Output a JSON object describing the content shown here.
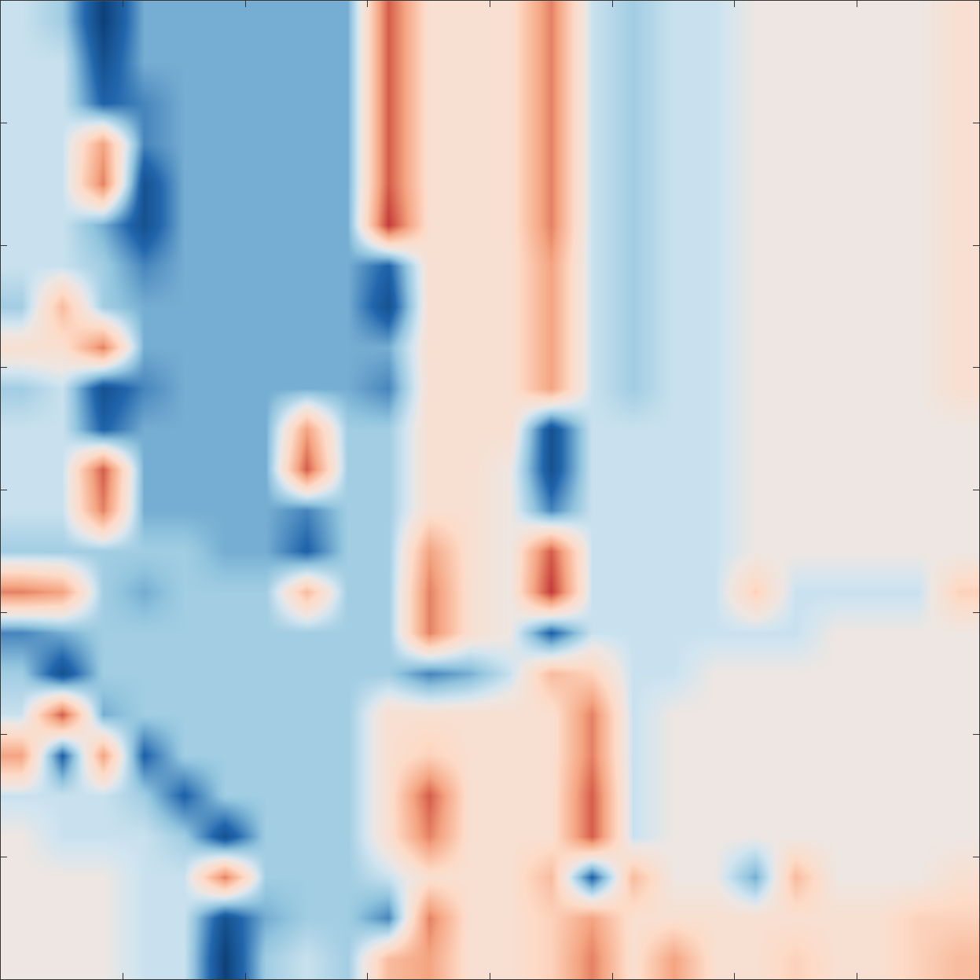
{
  "chart_data": {
    "type": "heatmap",
    "tick_labels": false,
    "xlim": [
      0,
      8
    ],
    "ylim": [
      0,
      8
    ],
    "xticks": [
      1,
      2,
      3,
      4,
      5,
      6,
      7
    ],
    "yticks": [
      1,
      2,
      3,
      4,
      5,
      6,
      7
    ],
    "zlim": [
      -8,
      8
    ],
    "x": [
      0.167,
      0.5,
      0.833,
      1.167,
      1.5,
      1.833,
      2.167,
      2.5,
      2.833,
      3.167,
      3.5,
      3.833,
      4.167,
      4.5,
      4.833,
      5.167,
      5.5,
      5.833,
      6.167,
      6.5,
      6.833,
      7.167,
      7.5,
      7.833
    ],
    "y": [
      7.833,
      7.5,
      7.167,
      6.833,
      6.5,
      6.167,
      5.833,
      5.5,
      5.167,
      4.833,
      4.5,
      4.167,
      3.833,
      3.5,
      3.167,
      2.833,
      2.5,
      2.167,
      1.833,
      1.5,
      1.167,
      0.833,
      0.5,
      0.167
    ],
    "cells": [
      [
        -1,
        -2,
        -7,
        -3,
        -3,
        -3,
        -3,
        -3,
        -3,
        6,
        1,
        1,
        1,
        5,
        -1,
        -2,
        -1,
        -1,
        0,
        0,
        0,
        0,
        0,
        1
      ],
      [
        -1,
        -1,
        -6,
        -3,
        -3,
        -3,
        -3,
        -3,
        -3,
        6,
        1,
        1,
        1,
        5,
        -1,
        -2,
        -1,
        -1,
        0,
        0,
        0,
        0,
        0,
        1
      ],
      [
        -1,
        -1,
        -5,
        -4,
        -3,
        -3,
        -3,
        -3,
        -3,
        6,
        1,
        1,
        1,
        5,
        -1,
        -2,
        -1,
        -1,
        0,
        0,
        0,
        0,
        0,
        1
      ],
      [
        -1,
        -1,
        4,
        -4,
        -3,
        -3,
        -3,
        -3,
        -3,
        6,
        1,
        1,
        1,
        5,
        -1,
        -2,
        -1,
        -1,
        0,
        0,
        0,
        0,
        0,
        1
      ],
      [
        -1,
        -1,
        5,
        -6,
        -3,
        -3,
        -3,
        -3,
        -3,
        6,
        1,
        1,
        1,
        5,
        -1,
        -2,
        -1,
        -1,
        0,
        0,
        0,
        0,
        0,
        1
      ],
      [
        -1,
        -1,
        -3,
        -6,
        -3,
        -3,
        -3,
        -3,
        -3,
        7,
        1,
        1,
        1,
        5,
        -1,
        -2,
        -1,
        -1,
        0,
        0,
        0,
        0,
        0,
        1
      ],
      [
        -1,
        -1,
        -2,
        -4,
        -3,
        -3,
        -3,
        -3,
        -3,
        -5,
        1,
        1,
        1,
        4,
        -1,
        -2,
        -1,
        -1,
        0,
        0,
        0,
        0,
        0,
        1
      ],
      [
        -2,
        3,
        -2,
        -3,
        -3,
        -3,
        -3,
        -3,
        -3,
        -6,
        1,
        1,
        1,
        4,
        -1,
        -2,
        -1,
        -1,
        0,
        0,
        0,
        0,
        0,
        1
      ],
      [
        1,
        1,
        5,
        -3,
        -3,
        -3,
        -3,
        -3,
        -3,
        -3,
        1,
        1,
        1,
        4,
        -1,
        -2,
        -1,
        -1,
        0,
        0,
        0,
        0,
        0,
        1
      ],
      [
        -2,
        -1,
        -6,
        -4,
        -3,
        -3,
        -3,
        -3,
        -3,
        -4,
        1,
        1,
        1,
        4,
        -1,
        -2,
        -1,
        -1,
        0,
        0,
        0,
        0,
        0,
        1
      ],
      [
        -1,
        -1,
        -5,
        -3,
        -3,
        -3,
        -3,
        4,
        -2,
        -2,
        1,
        1,
        1,
        -6,
        -1,
        -1,
        -1,
        -1,
        0,
        0,
        0,
        0,
        0,
        0
      ],
      [
        -1,
        -1,
        6,
        -3,
        -3,
        -3,
        -3,
        6,
        -2,
        -2,
        1,
        1,
        0,
        -6,
        -1,
        -1,
        -1,
        -1,
        0,
        0,
        0,
        0,
        0,
        0
      ],
      [
        -1,
        -1,
        5,
        -3,
        -3,
        -3,
        -3,
        -4,
        -2,
        -2,
        1,
        1,
        0,
        -4,
        -1,
        -1,
        -1,
        -1,
        0,
        0,
        0,
        0,
        0,
        0
      ],
      [
        -2,
        -2,
        -2,
        -2,
        -2,
        -3,
        -3,
        -5,
        -2,
        -2,
        4,
        1,
        0,
        6,
        -1,
        -1,
        -1,
        -1,
        0,
        0,
        0,
        0,
        0,
        0
      ],
      [
        5,
        4,
        -2,
        -3,
        -2,
        -2,
        -2,
        3,
        -2,
        -2,
        5,
        1,
        0,
        7,
        -1,
        -1,
        -1,
        -1,
        2,
        -1,
        -1,
        -1,
        -1,
        2
      ],
      [
        -4,
        -3,
        -2,
        -2,
        -2,
        -2,
        -2,
        -2,
        -2,
        -2,
        5,
        1,
        0,
        -5,
        -1,
        -1,
        -1,
        -1,
        -1,
        -1,
        0,
        0,
        0,
        0
      ],
      [
        -2,
        -6,
        -2,
        -2,
        -2,
        -2,
        -2,
        -2,
        -2,
        -2,
        -4,
        -3,
        -1,
        3,
        2,
        -1,
        -1,
        0,
        0,
        0,
        0,
        0,
        0,
        0
      ],
      [
        -1,
        6,
        -3,
        -2,
        -2,
        -2,
        -2,
        -2,
        -2,
        1,
        1,
        1,
        1,
        1,
        5,
        -1,
        0,
        0,
        0,
        0,
        0,
        0,
        0,
        0
      ],
      [
        4,
        -5,
        4,
        -5,
        -2,
        -2,
        -2,
        -2,
        -2,
        1,
        2,
        1,
        1,
        1,
        5,
        -1,
        0,
        0,
        0,
        0,
        0,
        0,
        0,
        0
      ],
      [
        -1,
        -1,
        -1,
        -2,
        -5,
        -2,
        -2,
        -2,
        -2,
        1,
        6,
        1,
        1,
        1,
        6,
        -1,
        0,
        0,
        0,
        0,
        0,
        0,
        0,
        0
      ],
      [
        0,
        -1,
        -1,
        -1,
        -2,
        -6,
        -2,
        -2,
        -2,
        1,
        5,
        1,
        1,
        1,
        6,
        -1,
        0,
        0,
        0,
        0,
        0,
        0,
        0,
        0
      ],
      [
        0,
        0,
        0,
        -1,
        -1,
        5,
        -2,
        -2,
        -2,
        -1,
        1,
        1,
        1,
        3,
        -5,
        3,
        0,
        0,
        -3,
        3,
        0,
        0,
        0,
        1
      ],
      [
        0,
        0,
        0,
        -1,
        -1,
        -6,
        -3,
        -2,
        -2,
        -4,
        5,
        1,
        1,
        2,
        4,
        1,
        1,
        1,
        1,
        1,
        1,
        1,
        2,
        2
      ],
      [
        0,
        0,
        0,
        -1,
        -1,
        -7,
        -2,
        -1,
        -2,
        3,
        4,
        1,
        1,
        2,
        5,
        1,
        4,
        1,
        1,
        2,
        1,
        1,
        2,
        3
      ]
    ]
  }
}
